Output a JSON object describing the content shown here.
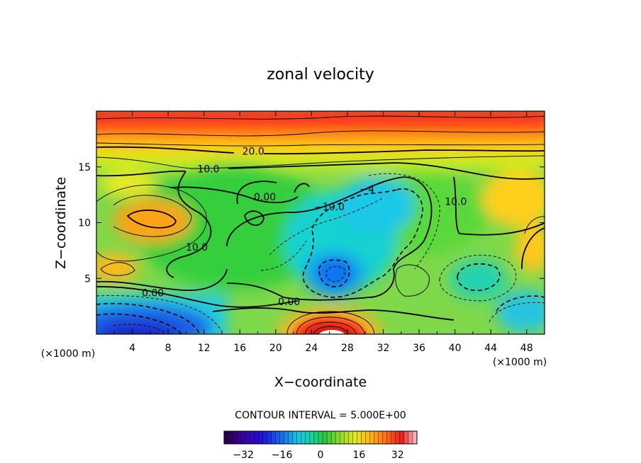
{
  "chart_data": {
    "type": "heatmap",
    "title": "zonal velocity",
    "xlabel": "X−coordinate",
    "ylabel": "Z−coordinate",
    "x_unit_left": "(×1000 m)",
    "x_unit_right": "(×1000 m)",
    "xlim": [
      0,
      50
    ],
    "ylim": [
      0,
      20
    ],
    "x_ticks": [
      4,
      8,
      12,
      16,
      20,
      24,
      28,
      32,
      36,
      40,
      44,
      48
    ],
    "x_tick_labels": [
      "4",
      "8",
      "12",
      "16",
      "20",
      "24",
      "28",
      "32",
      "36",
      "40",
      "44",
      "48"
    ],
    "y_ticks": [
      5,
      10,
      15
    ],
    "y_tick_labels": [
      "5",
      "10",
      "15"
    ],
    "contour_interval_text": "CONTOUR INTERVAL = 5.000E+00",
    "colorbar": {
      "range": [
        -40,
        40
      ],
      "ticks": [
        -32,
        -16,
        0,
        16,
        32
      ],
      "tick_labels": [
        "−32",
        "−16",
        "0",
        "16",
        "32"
      ]
    },
    "contour_labels": [
      {
        "text": "20.0",
        "x": 17.5,
        "z": 16.1
      },
      {
        "text": "10.0",
        "x": 12.5,
        "z": 14.5
      },
      {
        "text": "0.00",
        "x": 18.8,
        "z": 12.0
      },
      {
        "text": "−10.0",
        "x": 26.0,
        "z": 11.1
      },
      {
        "text": "−4",
        "x": 30.2,
        "z": 12.7
      },
      {
        "text": "10.0",
        "x": 40.1,
        "z": 11.6
      },
      {
        "text": "10.0",
        "x": 11.2,
        "z": 7.5
      },
      {
        "text": "0.00",
        "x": 6.3,
        "z": 3.4
      },
      {
        "text": "0.00",
        "x": 21.5,
        "z": 2.6
      }
    ]
  }
}
